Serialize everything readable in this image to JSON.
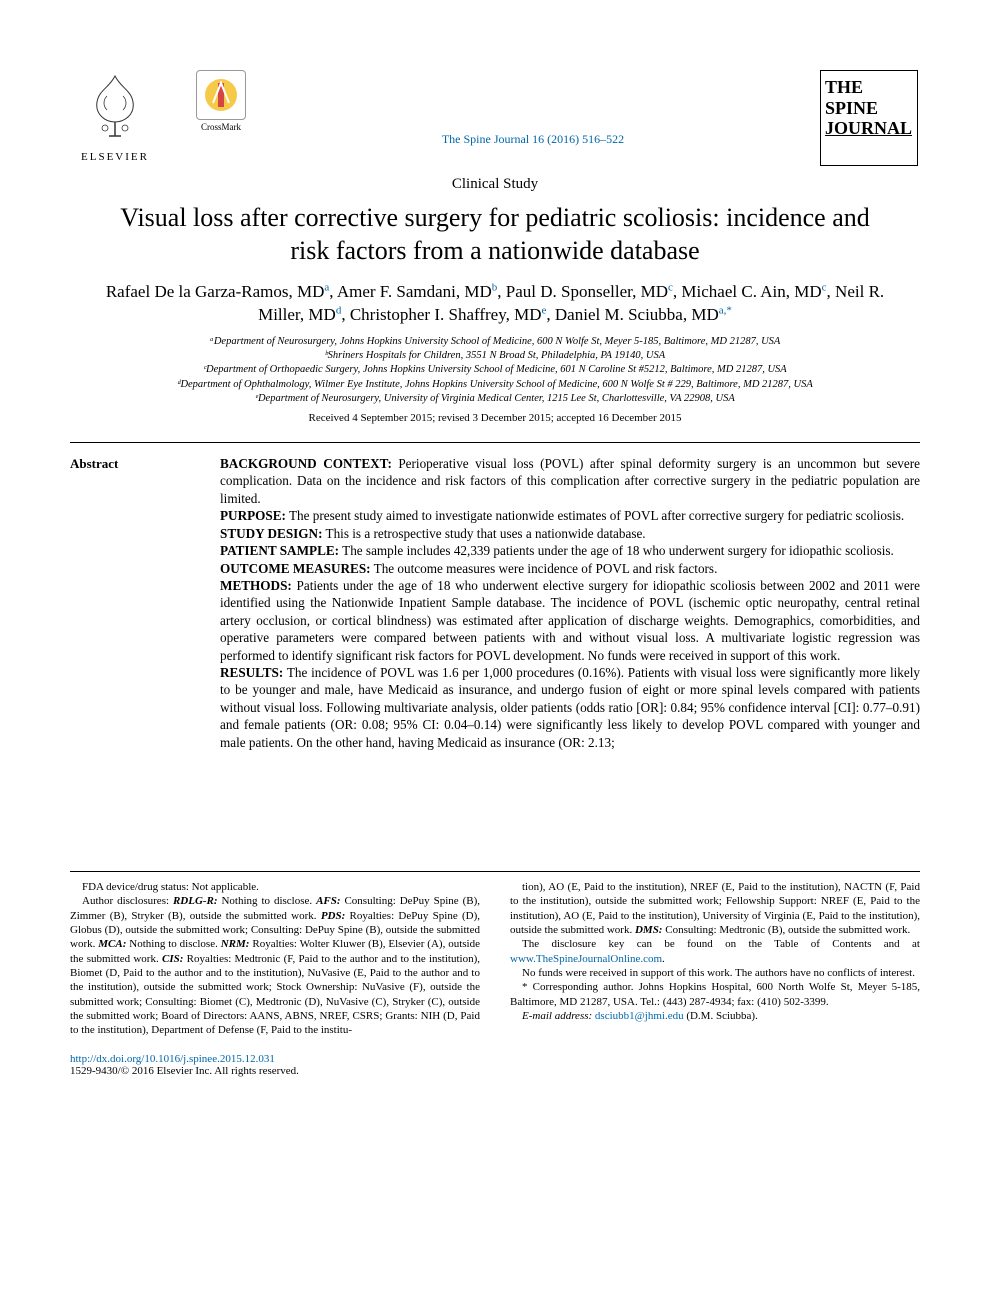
{
  "header": {
    "publisher_label": "ELSEVIER",
    "crossmark_label": "CrossMark",
    "journal_ref": "The Spine Journal 16 (2016) 516–522",
    "journal_logo_lines": [
      "THE",
      "SPINE",
      "JOURNAL"
    ]
  },
  "article": {
    "type": "Clinical Study",
    "title": "Visual loss after corrective surgery for pediatric scoliosis: incidence and risk factors from a nationwide database",
    "authors_html": "Rafael De la Garza-Ramos, MD<sup>a</sup>, Amer F. Samdani, MD<sup>b</sup>, Paul D. Sponseller, MD<sup>c</sup>, Michael C. Ain, MD<sup>c</sup>, Neil R. Miller, MD<sup>d</sup>, Christopher I. Shaffrey, MD<sup>e</sup>, Daniel M. Sciubba, MD<sup>a,*</sup>",
    "affiliations": [
      "ᵃDepartment of Neurosurgery, Johns Hopkins University School of Medicine, 600 N Wolfe St, Meyer 5-185, Baltimore, MD 21287, USA",
      "ᵇShriners Hospitals for Children, 3551 N Broad St, Philadelphia, PA 19140, USA",
      "ᶜDepartment of Orthopaedic Surgery, Johns Hopkins University School of Medicine, 601 N Caroline St #5212, Baltimore, MD 21287, USA",
      "ᵈDepartment of Ophthalmology, Wilmer Eye Institute, Johns Hopkins University School of Medicine, 600 N Wolfe St # 229, Baltimore, MD 21287, USA",
      "ᵉDepartment of Neurosurgery, University of Virginia Medical Center, 1215 Lee St, Charlottesville, VA 22908, USA"
    ],
    "dates": "Received 4 September 2015; revised 3 December 2015; accepted 16 December 2015"
  },
  "abstract": {
    "label": "Abstract",
    "sections": [
      {
        "head": "BACKGROUND CONTEXT:",
        "body": " Perioperative visual loss (POVL) after spinal deformity surgery is an uncommon but severe complication. Data on the incidence and risk factors of this complication after corrective surgery in the pediatric population are limited."
      },
      {
        "head": "PURPOSE:",
        "body": " The present study aimed to investigate nationwide estimates of POVL after corrective surgery for pediatric scoliosis."
      },
      {
        "head": "STUDY DESIGN:",
        "body": " This is a retrospective study that uses a nationwide database."
      },
      {
        "head": "PATIENT SAMPLE:",
        "body": " The sample includes 42,339 patients under the age of 18 who underwent surgery for idiopathic scoliosis."
      },
      {
        "head": "OUTCOME MEASURES:",
        "body": " The outcome measures were incidence of POVL and risk factors."
      },
      {
        "head": "METHODS:",
        "body": " Patients under the age of 18 who underwent elective surgery for idiopathic scoliosis between 2002 and 2011 were identified using the Nationwide Inpatient Sample database. The incidence of POVL (ischemic optic neuropathy, central retinal artery occlusion, or cortical blindness) was estimated after application of discharge weights. Demographics, comorbidities, and operative parameters were compared between patients with and without visual loss. A multivariate logistic regression was performed to identify significant risk factors for POVL development. No funds were received in support of this work."
      },
      {
        "head": "RESULTS:",
        "body": " The incidence of POVL was 1.6 per 1,000 procedures (0.16%). Patients with visual loss were significantly more likely to be younger and male, have Medicaid as insurance, and undergo fusion of eight or more spinal levels compared with patients without visual loss. Following multivariate analysis, older patients (odds ratio [OR]: 0.84; 95% confidence interval [CI]: 0.77–0.91) and female patients (OR: 0.08; 95% CI: 0.04–0.14) were significantly less likely to develop POVL compared with younger and male patients. On the other hand, having Medicaid as insurance (OR: 2.13;"
      }
    ]
  },
  "footnotes": {
    "left": [
      "FDA device/drug status: Not applicable.",
      "Author disclosures: <span class=\"fi\"><b>RDLG-R:</b></span> Nothing to disclose. <span class=\"fi\"><b>AFS:</b></span> Consulting: DePuy Spine (B), Zimmer (B), Stryker (B), outside the submitted work. <span class=\"fi\"><b>PDS:</b></span> Royalties: DePuy Spine (D), Globus (D), outside the submitted work; Consulting: DePuy Spine (B), outside the submitted work. <span class=\"fi\"><b>MCA:</b></span> Nothing to disclose. <span class=\"fi\"><b>NRM:</b></span> Royalties: Wolter Kluwer (B), Elsevier (A), outside the submitted work. <span class=\"fi\"><b>CIS:</b></span> Royalties: Medtronic (F, Paid to the author and to the institution), Biomet (D, Paid to the author and to the institution), NuVasive (E, Paid to the author and to the institution), outside the submitted work; Stock Ownership: NuVasive (F), outside the submitted work; Consulting: Biomet (C), Medtronic (D), NuVasive (C), Stryker (C), outside the submitted work; Board of Directors: AANS, ABNS, NREF, CSRS; Grants: NIH (D, Paid to the institution), Department of Defense (F, Paid to the institu-"
    ],
    "right": [
      "tion), AO (E, Paid to the institution), NREF (E, Paid to the institution), NACTN (F, Paid to the institution), outside the submitted work; Fellowship Support: NREF (E, Paid to the institution), AO (E, Paid to the institution), University of Virginia (E, Paid to the institution), outside the submitted work. <span class=\"fi\"><b>DMS:</b></span> Consulting: Medtronic (B), outside the submitted work.",
      "The disclosure key can be found on the Table of Contents and at <a>www.TheSpineJournalOnline.com</a>.",
      "No funds were received in support of this work. The authors have no conflicts of interest.",
      "* Corresponding author. Johns Hopkins Hospital, 600 North Wolfe St, Meyer 5-185, Baltimore, MD 21287, USA. Tel.: (443) 287-4934; fax: (410) 502-3399.",
      "<span class=\"fi\">E-mail address:</span> <a>dsciubb1@jhmi.edu</a> (D.M. Sciubba)."
    ]
  },
  "bottom": {
    "doi": "http://dx.doi.org/10.1016/j.spinee.2015.12.031",
    "copyright": "1529-9430/© 2016 Elsevier Inc. All rights reserved."
  },
  "colors": {
    "link": "#0066aa",
    "text": "#000000",
    "bg": "#ffffff",
    "crossmark_yellow": "#f7c948",
    "crossmark_red": "#d64545"
  }
}
